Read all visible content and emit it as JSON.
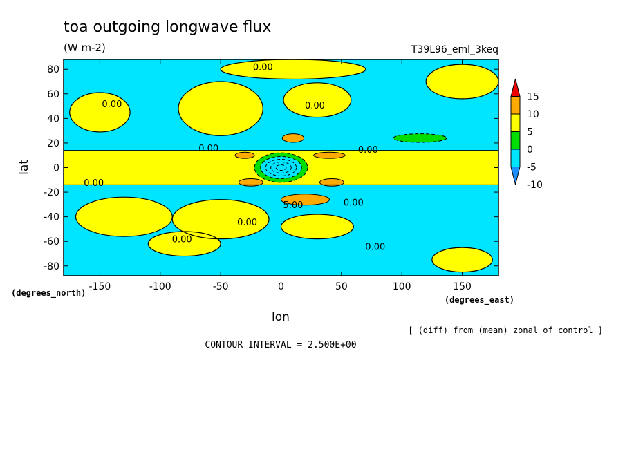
{
  "chart_data": {
    "type": "heatmap",
    "title": "toa outgoing longwave flux",
    "units": "(W m-2)",
    "run_label": "T39L96_eml_3keq",
    "xlabel": "lon",
    "ylabel": "lat",
    "x_units": "(degrees_east)",
    "y_units": "(degrees_north)",
    "xlim": [
      -180,
      180
    ],
    "ylim": [
      -88,
      88
    ],
    "x_ticks": [
      -150,
      -100,
      -50,
      0,
      50,
      100,
      150
    ],
    "y_ticks": [
      80,
      60,
      40,
      20,
      0,
      -20,
      -40,
      -60,
      -80
    ],
    "x_tick_labels": [
      "-150",
      "-100",
      "-50",
      "0",
      "50",
      "100",
      "150"
    ],
    "y_tick_labels": [
      "80",
      "60",
      "40",
      "20",
      "0",
      "-20",
      "-40",
      "-60",
      "-80"
    ],
    "colorbar": {
      "levels": [
        -10,
        -5,
        0,
        5,
        10,
        15
      ],
      "labels": [
        "15",
        "10",
        "5",
        "0",
        "-5",
        "-10"
      ],
      "colors": [
        "#1e90ff",
        "#00e5ff",
        "#00dd00",
        "#ffff00",
        "#ffaa00",
        "#ee0000"
      ]
    },
    "contour_labels": [
      {
        "text": "0.00",
        "lon": -15,
        "lat": 82
      },
      {
        "text": "0.00",
        "lon": -140,
        "lat": 52
      },
      {
        "text": "0.00",
        "lon": 28,
        "lat": 51
      },
      {
        "text": "0.00",
        "lon": -60,
        "lat": 16
      },
      {
        "text": "0.00",
        "lon": 72,
        "lat": 15
      },
      {
        "text": "0.00",
        "lon": -155,
        "lat": -12
      },
      {
        "text": "5.00",
        "lon": 10,
        "lat": -30
      },
      {
        "text": "0.00",
        "lon": 60,
        "lat": -28
      },
      {
        "text": "0.00",
        "lon": -28,
        "lat": -44
      },
      {
        "text": "0.00",
        "lon": -82,
        "lat": -58
      },
      {
        "text": "0.00",
        "lon": 78,
        "lat": -64
      }
    ],
    "field": {
      "background": "#00e5ff",
      "regions": [
        {
          "level": 0,
          "kind": "band",
          "lat_center": 0,
          "half_width": 14
        },
        {
          "level": 0,
          "kind": "patch",
          "lon": -150,
          "lat": 45,
          "rlon": 25,
          "rlat": 16
        },
        {
          "level": 0,
          "kind": "patch",
          "lon": -50,
          "lat": 48,
          "rlon": 35,
          "rlat": 22
        },
        {
          "level": 0,
          "kind": "patch",
          "lon": 30,
          "lat": 55,
          "rlon": 28,
          "rlat": 14
        },
        {
          "level": 0,
          "kind": "patch",
          "lon": 10,
          "lat": 80,
          "rlon": 60,
          "rlat": 8
        },
        {
          "level": 0,
          "kind": "patch",
          "lon": 150,
          "lat": 70,
          "rlon": 30,
          "rlat": 14
        },
        {
          "level": 0,
          "kind": "patch",
          "lon": -130,
          "lat": -40,
          "rlon": 40,
          "rlat": 16
        },
        {
          "level": 0,
          "kind": "patch",
          "lon": -50,
          "lat": -42,
          "rlon": 40,
          "rlat": 16
        },
        {
          "level": 0,
          "kind": "patch",
          "lon": 30,
          "lat": -48,
          "rlon": 30,
          "rlat": 10
        },
        {
          "level": 0,
          "kind": "patch",
          "lon": -80,
          "lat": -62,
          "rlon": 30,
          "rlat": 10
        },
        {
          "level": 0,
          "kind": "patch",
          "lon": 150,
          "lat": -75,
          "rlon": 25,
          "rlat": 10
        },
        {
          "level": 5,
          "kind": "patch",
          "lon": 10,
          "lat": 24,
          "rlon": 9,
          "rlat": 3.5
        },
        {
          "level": 5,
          "kind": "patch",
          "lon": -30,
          "lat": 10,
          "rlon": 8,
          "rlat": 2.5
        },
        {
          "level": 5,
          "kind": "patch",
          "lon": 40,
          "lat": 10,
          "rlon": 13,
          "rlat": 2.5
        },
        {
          "level": 5,
          "kind": "patch",
          "lon": -25,
          "lat": -12,
          "rlon": 10,
          "rlat": 3
        },
        {
          "level": 5,
          "kind": "patch",
          "lon": 42,
          "lat": -12,
          "rlon": 10,
          "rlat": 3
        },
        {
          "level": 5,
          "kind": "patch",
          "lon": 20,
          "lat": -26,
          "rlon": 20,
          "rlat": 4.5
        },
        {
          "level": -5,
          "kind": "patch",
          "lon": 0,
          "lat": 0,
          "rlon": 22,
          "rlat": 12
        },
        {
          "level": -5,
          "kind": "patch",
          "lon": 115,
          "lat": 24,
          "rlon": 22,
          "rlat": 3.5
        },
        {
          "level": -10,
          "kind": "patch",
          "lon": 0,
          "lat": 0,
          "rlon": 17,
          "rlat": 9
        }
      ]
    }
  },
  "footer": {
    "note": "[ (diff) from (mean) zonal of control ]",
    "contour_interval": "CONTOUR INTERVAL = 2.500E+00"
  }
}
